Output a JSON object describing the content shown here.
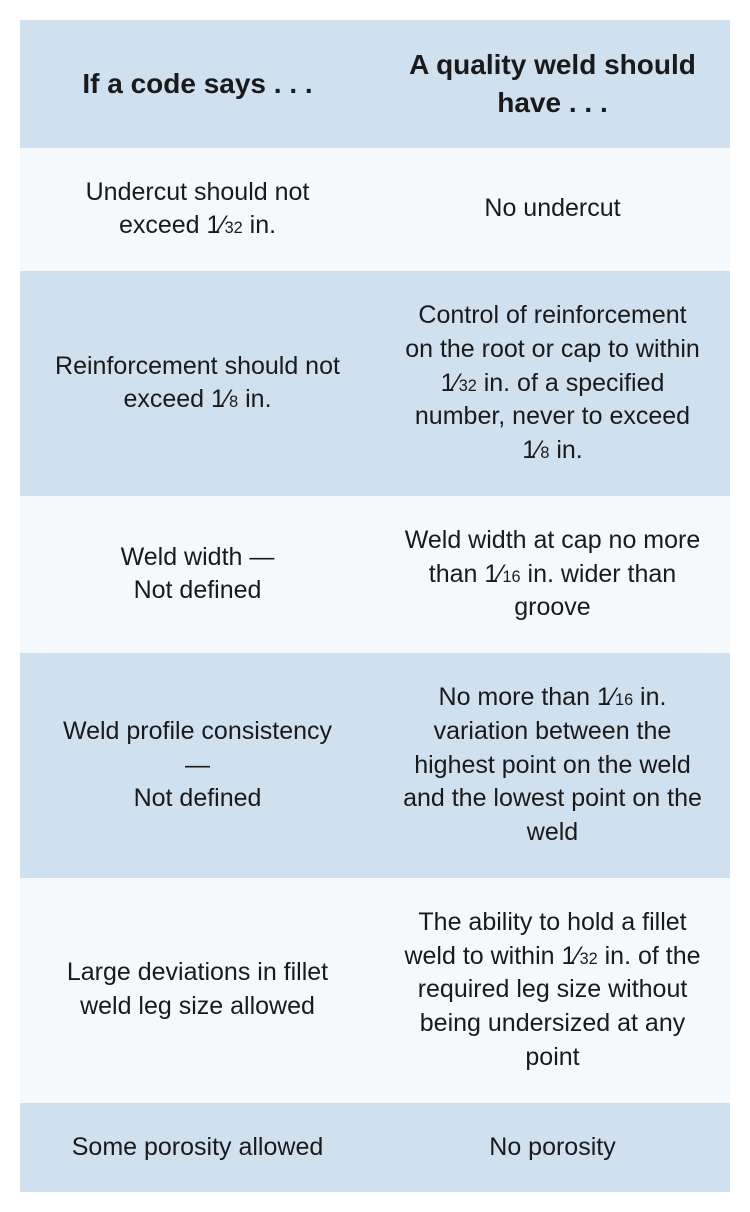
{
  "table": {
    "header_bg": "#cfe0ee",
    "row_alt_bg_light": "#f6f9fc",
    "row_alt_bg_dark": "#cfe0ee",
    "text_color": "#1a1a1a",
    "columns": [
      "If a code says . . .",
      "A quality weld should have . . ."
    ],
    "rows": [
      {
        "code": [
          {
            "t": "Undercut should not exceed "
          },
          {
            "frac": [
              "1",
              "32"
            ]
          },
          {
            "t": " in."
          }
        ],
        "quality": [
          {
            "t": "No undercut"
          }
        ]
      },
      {
        "code": [
          {
            "t": "Reinforcement should not exceed "
          },
          {
            "frac": [
              "1",
              "8"
            ]
          },
          {
            "t": " in."
          }
        ],
        "quality": [
          {
            "t": "Control of reinforcement on the root or cap to within "
          },
          {
            "frac": [
              "1",
              "32"
            ]
          },
          {
            "t": " in. of a specified number, never to exceed "
          },
          {
            "frac": [
              "1",
              "8"
            ]
          },
          {
            "t": " in."
          }
        ]
      },
      {
        "code": [
          {
            "t": "Weld width —"
          },
          {
            "br": true
          },
          {
            "t": "Not defined"
          }
        ],
        "quality": [
          {
            "t": "Weld width at cap no more than "
          },
          {
            "frac": [
              "1",
              "16"
            ]
          },
          {
            "t": " in. wider than groove"
          }
        ]
      },
      {
        "code": [
          {
            "t": "Weld profile consistency —"
          },
          {
            "br": true
          },
          {
            "t": "Not defined"
          }
        ],
        "quality": [
          {
            "t": "No more than "
          },
          {
            "frac": [
              "1",
              "16"
            ]
          },
          {
            "t": " in. variation between the highest point on the weld and the lowest point on the weld"
          }
        ]
      },
      {
        "code": [
          {
            "t": "Large deviations in fillet weld leg size allowed"
          }
        ],
        "quality": [
          {
            "t": "The ability to hold a fillet weld to within "
          },
          {
            "frac": [
              "1",
              "32"
            ]
          },
          {
            "t": " in. of the required leg size without being undersized at any point"
          }
        ]
      },
      {
        "code": [
          {
            "t": "Some porosity allowed"
          }
        ],
        "quality": [
          {
            "t": "No porosity"
          }
        ]
      }
    ]
  }
}
